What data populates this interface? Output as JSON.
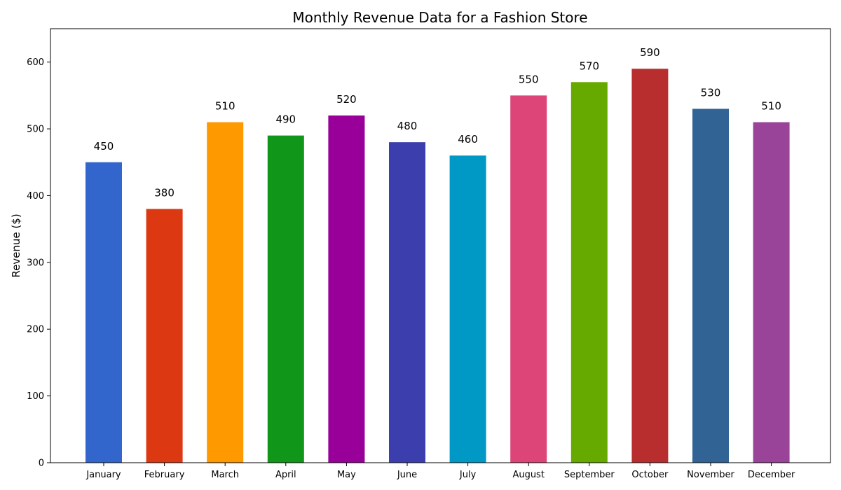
{
  "chart_data": {
    "type": "bar",
    "title": "Monthly Revenue Data for a Fashion Store",
    "xlabel": "",
    "ylabel": "Revenue ($)",
    "ylim": [
      0,
      650
    ],
    "yticks": [
      0,
      100,
      200,
      300,
      400,
      500,
      600
    ],
    "grid": false,
    "categories": [
      "January",
      "February",
      "March",
      "April",
      "May",
      "June",
      "July",
      "August",
      "September",
      "October",
      "November",
      "December"
    ],
    "values": [
      450,
      380,
      510,
      490,
      520,
      480,
      460,
      550,
      570,
      590,
      530,
      510
    ],
    "colors": [
      "#3366cc",
      "#dc3912",
      "#ff9900",
      "#109618",
      "#990099",
      "#3b3eac",
      "#0099c6",
      "#dd4477",
      "#66aa00",
      "#b82e2e",
      "#316395",
      "#994499"
    ]
  }
}
